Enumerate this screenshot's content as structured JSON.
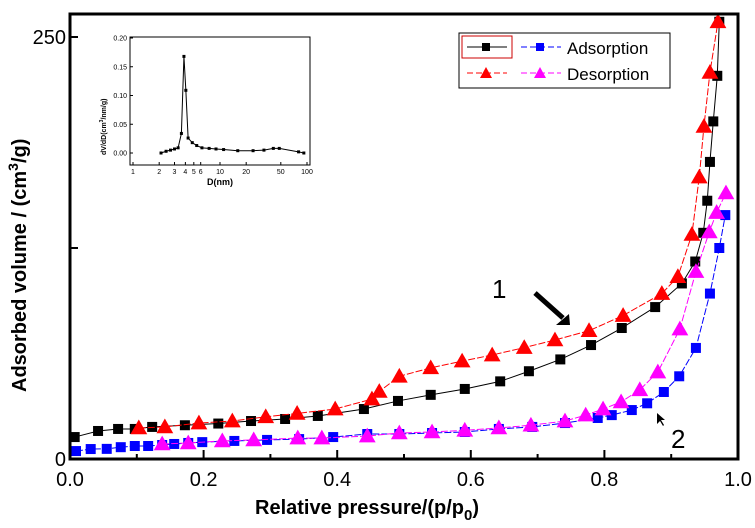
{
  "chart_data": [
    {
      "type": "line",
      "xlabel": "Relative pressure/(p/p",
      "xlabel_sub": "0",
      "xlabel_end": ")",
      "ylabel": "Adsorbed volume / (cm",
      "ylabel_sup": "3",
      "ylabel_end": "/g)",
      "xlim": [
        0,
        1.0
      ],
      "ylim": [
        0,
        250
      ],
      "x_ticks": [
        "0.0",
        "0.2",
        "0.4",
        "0.6",
        "0.8",
        "1.0"
      ],
      "y_ticks": [
        "0",
        "250"
      ],
      "legend_position": "top-right",
      "legend": [
        "Adsorption",
        "Desorption"
      ],
      "annotations": [
        "1",
        "2"
      ],
      "series": [
        {
          "name": "Adsorption",
          "curve": "1",
          "color": "#000000",
          "marker": "square",
          "x": [
            0.007,
            0.042,
            0.072,
            0.097,
            0.123,
            0.172,
            0.222,
            0.271,
            0.322,
            0.371,
            0.44,
            0.491,
            0.54,
            0.591,
            0.644,
            0.687,
            0.734,
            0.78,
            0.826,
            0.876,
            0.916,
            0.936,
            0.948,
            0.954,
            0.958,
            0.963,
            0.969,
            0.972
          ],
          "y": [
            13,
            16.6,
            17.8,
            17.8,
            19,
            20,
            21,
            22.5,
            23.7,
            25.5,
            29.6,
            34.4,
            38,
            41.5,
            46,
            52,
            59,
            67.5,
            77.6,
            90,
            104,
            117,
            134,
            153,
            176,
            200,
            227,
            259
          ]
        },
        {
          "name": "Desorption",
          "curve": "1",
          "color": "#ff0000",
          "marker": "triangle",
          "x": [
            0.103,
            0.142,
            0.193,
            0.243,
            0.293,
            0.34,
            0.397,
            0.452,
            0.463,
            0.493,
            0.54,
            0.587,
            0.632,
            0.68,
            0.726,
            0.777,
            0.828,
            0.886,
            0.91,
            0.931,
            0.942,
            0.949,
            0.958,
            0.97
          ],
          "y": [
            18.4,
            19,
            21.3,
            22.5,
            25,
            27,
            29.6,
            35.5,
            40,
            49,
            54,
            58,
            61.6,
            66,
            70.5,
            76,
            85,
            98,
            108,
            133,
            167,
            197,
            229,
            259
          ]
        },
        {
          "curve": "2",
          "color": "#0000ff",
          "marker": "square",
          "x": [
            0.009,
            0.031,
            0.055,
            0.076,
            0.097,
            0.117,
            0.138,
            0.156,
            0.177,
            0.198,
            0.246,
            0.295,
            0.343,
            0.394,
            0.445,
            0.493,
            0.542,
            0.591,
            0.642,
            0.692,
            0.741,
            0.79,
            0.811,
            0.841,
            0.864,
            0.889,
            0.912,
            0.937,
            0.958,
            0.972,
            0.981
          ],
          "y": [
            4.7,
            5.9,
            6,
            7,
            7.7,
            7.7,
            8.3,
            8.9,
            9.5,
            10,
            10.7,
            11.3,
            11.8,
            13,
            14.8,
            14.8,
            15.4,
            16,
            17.8,
            19,
            21.3,
            24.3,
            26,
            29,
            33,
            39.7,
            49,
            65.8,
            98,
            125,
            144.5
          ]
        },
        {
          "curve": "2",
          "color": "#ff00ff",
          "marker": "triangle",
          "x": [
            0.138,
            0.177,
            0.228,
            0.275,
            0.341,
            0.377,
            0.445,
            0.493,
            0.542,
            0.591,
            0.642,
            0.69,
            0.741,
            0.772,
            0.798,
            0.825,
            0.853,
            0.88,
            0.913,
            0.937,
            0.957,
            0.968,
            0.982
          ],
          "y": [
            8.9,
            9.5,
            10.7,
            11.3,
            12.4,
            12.4,
            13.6,
            15.4,
            16,
            17,
            18.4,
            20,
            22.5,
            26,
            29.6,
            33.8,
            41,
            51.5,
            77,
            111,
            134.5,
            146,
            157.6
          ]
        }
      ]
    },
    {
      "type": "line",
      "xlabel": "D(nm)",
      "ylabel": "dV/dD(cm",
      "ylabel_sup": "3",
      "ylabel_end": "/nm/g)",
      "xscale": "log",
      "xlim": [
        1,
        100
      ],
      "ylim": [
        -0.02,
        0.2
      ],
      "x_ticks": [
        "1",
        "2",
        "3",
        "4",
        "5",
        "6",
        "10",
        "20",
        "50",
        "100"
      ],
      "x_tick_values": [
        1,
        2,
        3,
        4,
        5,
        6,
        10,
        20,
        50,
        100
      ],
      "y_ticks": [
        "0.00",
        "0.05",
        "0.10",
        "0.15",
        "0.20"
      ],
      "series": [
        {
          "color": "#000000",
          "marker": "square",
          "x": [
            2.1,
            2.4,
            2.7,
            3.0,
            3.3,
            3.6,
            3.85,
            4.05,
            4.3,
            4.8,
            5.4,
            6.2,
            7.5,
            9,
            11,
            16,
            24,
            32,
            41,
            48,
            80,
            92
          ],
          "y": [
            0,
            0.003,
            0.005,
            0.007,
            0.009,
            0.034,
            0.168,
            0.109,
            0.026,
            0.018,
            0.013,
            0.009,
            0.008,
            0.007,
            0.006,
            0.004,
            0.004,
            0.005,
            0.008,
            0.008,
            0.002,
            0
          ]
        }
      ]
    }
  ]
}
